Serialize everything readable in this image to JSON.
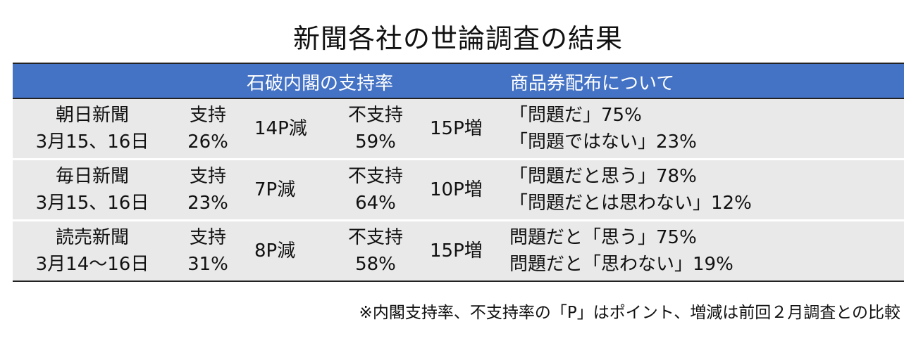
{
  "title": "新聞各社の世論調査の結果",
  "header": {
    "approval": "石破内閣の支持率",
    "voucher": "商品券配布について"
  },
  "rows": [
    {
      "paper": "朝日新聞",
      "date": "3月15、16日",
      "support_label": "支持",
      "support_value": "26%",
      "support_change": "14P減",
      "nonsupport_label": "不支持",
      "nonsupport_value": "59%",
      "nonsupport_change": "15P増",
      "voucher_line1": "「問題だ」75%",
      "voucher_line2": "「問題ではない」23%"
    },
    {
      "paper": "毎日新聞",
      "date": "3月15、16日",
      "support_label": "支持",
      "support_value": "23%",
      "support_change": "7P減",
      "nonsupport_label": "不支持",
      "nonsupport_value": "64%",
      "nonsupport_change": "10P増",
      "voucher_line1": "「問題だと思う」78%",
      "voucher_line2": "「問題だとは思わない」12%"
    },
    {
      "paper": "読売新聞",
      "date": "3月14～16日",
      "support_label": "支持",
      "support_value": "31%",
      "support_change": "8P減",
      "nonsupport_label": "不支持",
      "nonsupport_value": "58%",
      "nonsupport_change": "15P増",
      "voucher_line1": "問題だと「思う」75%",
      "voucher_line2": "問題だと「思わない」19%"
    }
  ],
  "footnote": "※内閣支持率、不支持率の「P」はポイント、増減は前回２月調査との比較",
  "colors": {
    "header_bg": "#4472c4",
    "row_bg": "#e9e9e9"
  }
}
